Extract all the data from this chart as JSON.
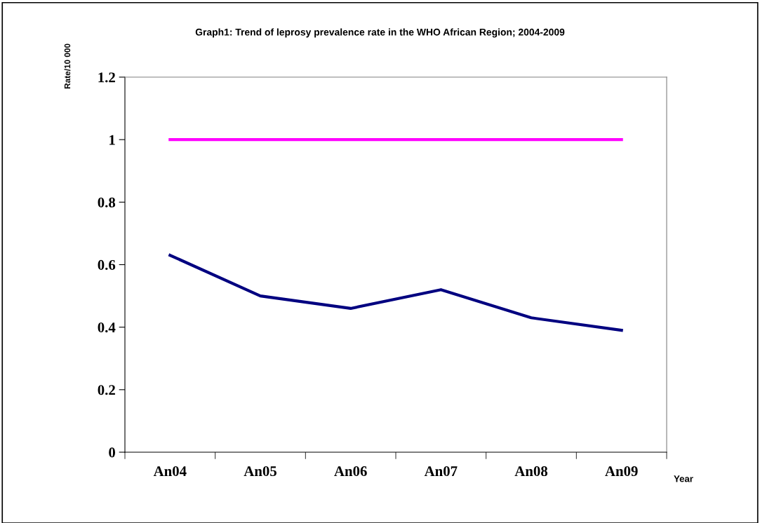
{
  "chart_data": {
    "type": "line",
    "title": "Graph1: Trend of leprosy prevalence rate in the WHO African Region; 2004-2009",
    "xlabel": "Year",
    "ylabel": "Rate/10 000",
    "categories": [
      "An04",
      "An05",
      "An06",
      "An07",
      "An08",
      "An09"
    ],
    "series": [
      {
        "color": "#ff00ff",
        "values": [
          1.0,
          1.0,
          1.0,
          1.0,
          1.0,
          1.0
        ]
      },
      {
        "color": "#000080",
        "values": [
          0.63,
          0.5,
          0.46,
          0.52,
          0.43,
          0.39
        ]
      }
    ],
    "ylim": [
      0,
      1.2
    ],
    "yticks": [
      0,
      0.2,
      0.4,
      0.6,
      0.8,
      1,
      1.2
    ],
    "grid": false,
    "legend": false,
    "marker": "none",
    "line_style": "solid"
  }
}
